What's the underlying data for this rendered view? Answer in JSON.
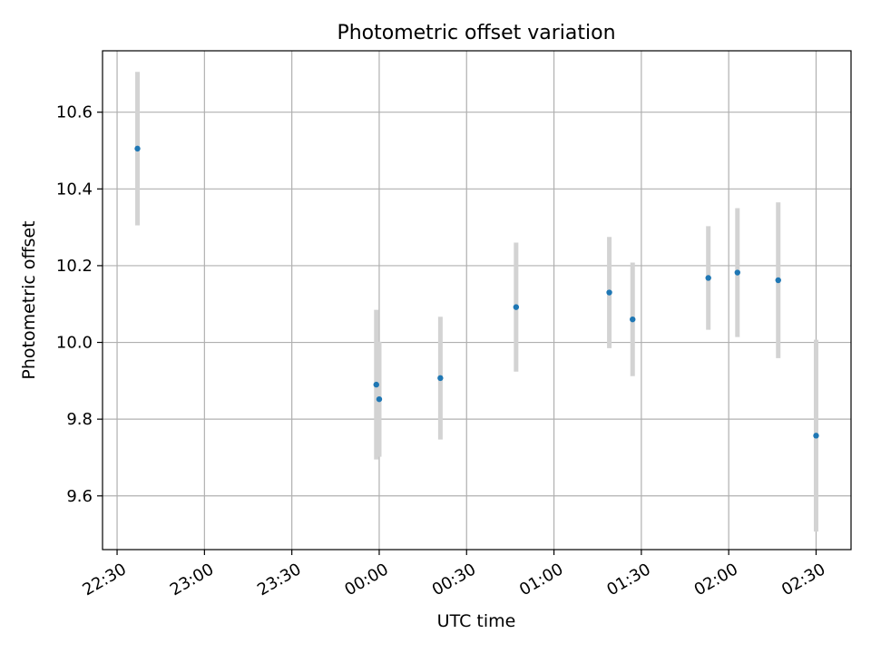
{
  "chart_data": {
    "type": "scatter",
    "title": "Photometric offset variation",
    "xlabel": "UTC time",
    "ylabel": "Photometric offset",
    "x_ticks": [
      "22:30",
      "23:00",
      "23:30",
      "00:00",
      "00:30",
      "01:00",
      "01:30",
      "02:00",
      "02:30"
    ],
    "y_ticks": [
      9.6,
      9.8,
      10.0,
      10.2,
      10.4,
      10.6
    ],
    "xlim": [
      "22:25",
      "02:42"
    ],
    "ylim": [
      9.46,
      10.76
    ],
    "grid": true,
    "colors": {
      "points": "#1f77b4",
      "errorbars": "#d3d3d3",
      "grid": "#b0b0b0"
    },
    "points": [
      {
        "x": "22:37",
        "y": 10.505,
        "yerr": 0.2
      },
      {
        "x": "23:59",
        "y": 9.89,
        "yerr": 0.195
      },
      {
        "x": "24:00",
        "y": 9.852,
        "yerr": 0.15
      },
      {
        "x": "24:21",
        "y": 9.907,
        "yerr": 0.16
      },
      {
        "x": "24:47",
        "y": 10.092,
        "yerr": 0.168
      },
      {
        "x": "25:19",
        "y": 10.13,
        "yerr": 0.145
      },
      {
        "x": "25:27",
        "y": 10.06,
        "yerr": 0.148
      },
      {
        "x": "25:53",
        "y": 10.168,
        "yerr": 0.135
      },
      {
        "x": "26:03",
        "y": 10.182,
        "yerr": 0.168
      },
      {
        "x": "26:17",
        "y": 10.162,
        "yerr": 0.203
      },
      {
        "x": "26:30",
        "y": 9.757,
        "yerr": 0.25
      }
    ]
  }
}
